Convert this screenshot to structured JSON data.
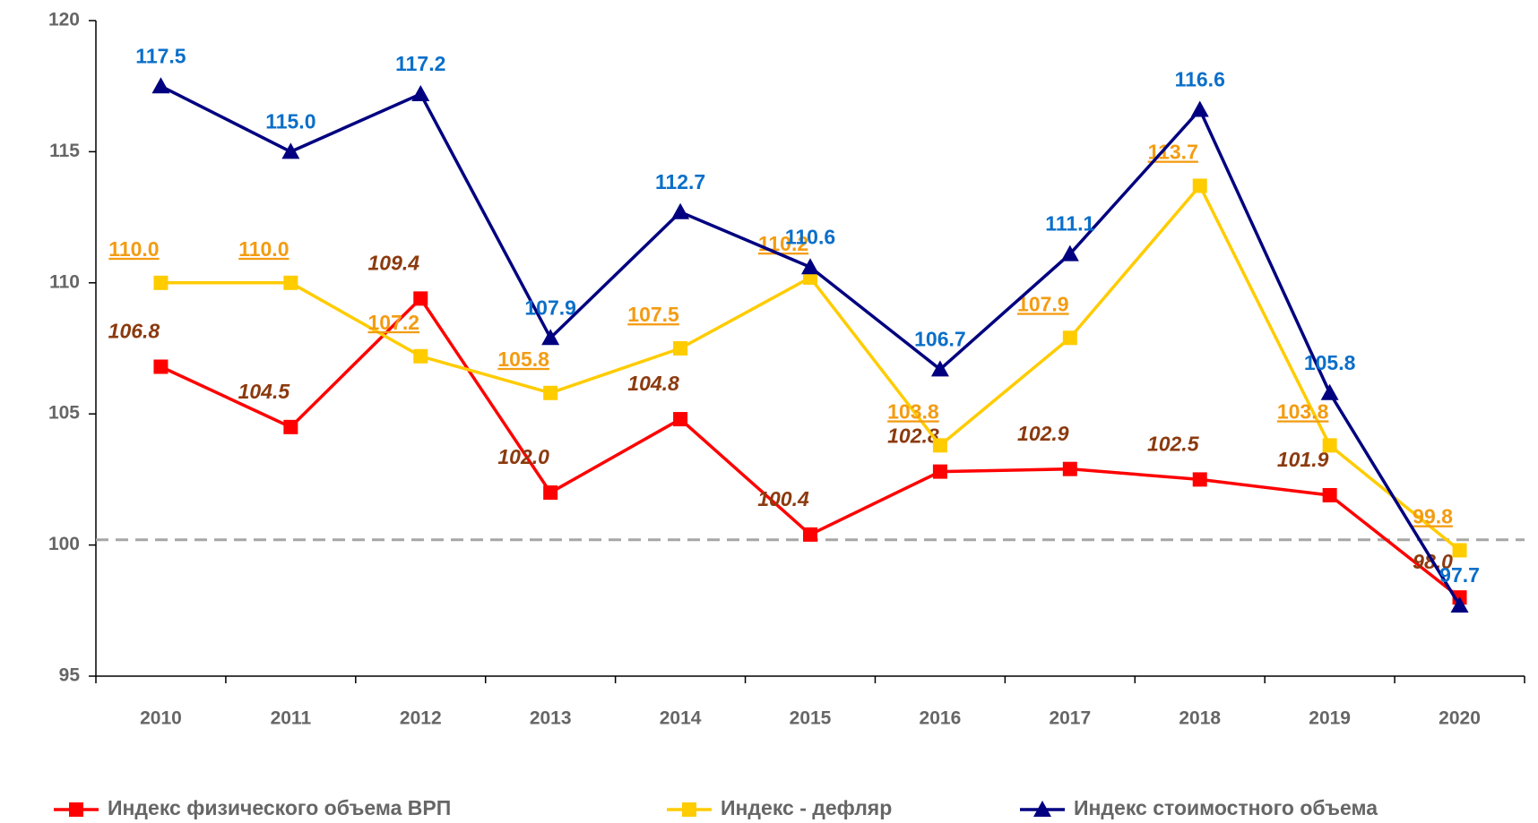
{
  "chart_data": {
    "type": "line",
    "categories": [
      "2010",
      "2011",
      "2012",
      "2013",
      "2014",
      "2015",
      "2016",
      "2017",
      "2018",
      "2019",
      "2020"
    ],
    "series": [
      {
        "name": "Индекс физического объема ВРП",
        "color": "#ff0000",
        "marker": "square",
        "values": [
          106.8,
          104.5,
          109.4,
          102.0,
          104.8,
          100.4,
          102.8,
          102.9,
          102.5,
          101.9,
          98.0
        ],
        "value_labels": [
          "106.8",
          "104.5",
          "109.4",
          "102.0",
          "104.8",
          "100.4",
          "102.8",
          "102.9",
          "102.5",
          "101.9",
          "98.0"
        ]
      },
      {
        "name": "Индекс - дефляр",
        "color": "#ffcc00",
        "marker": "square",
        "values": [
          110.0,
          110.0,
          107.2,
          105.8,
          107.5,
          110.2,
          103.8,
          107.9,
          113.7,
          103.8,
          99.8
        ],
        "value_labels": [
          "110.0",
          "110.0",
          "107.2",
          "105.8",
          "107.5",
          "110.2",
          "103.8",
          "107.9",
          "113.7",
          "103.8",
          "99.8"
        ]
      },
      {
        "name": "Индекс стоимостного объема",
        "color": "#000080",
        "marker": "triangle",
        "values": [
          117.5,
          115.0,
          117.2,
          107.9,
          112.7,
          110.6,
          106.7,
          111.1,
          116.6,
          105.8,
          97.7
        ],
        "value_labels": [
          "117.5",
          "115.0",
          "117.2",
          "107.9",
          "112.7",
          "110.6",
          "106.7",
          "111.1",
          "116.6",
          "105.8",
          "97.7"
        ]
      }
    ],
    "ylim": [
      95,
      120
    ],
    "yticks": [
      95,
      100,
      105,
      110,
      115,
      120
    ],
    "reference_line": 100.2,
    "grid": false,
    "legend": "bottom"
  }
}
